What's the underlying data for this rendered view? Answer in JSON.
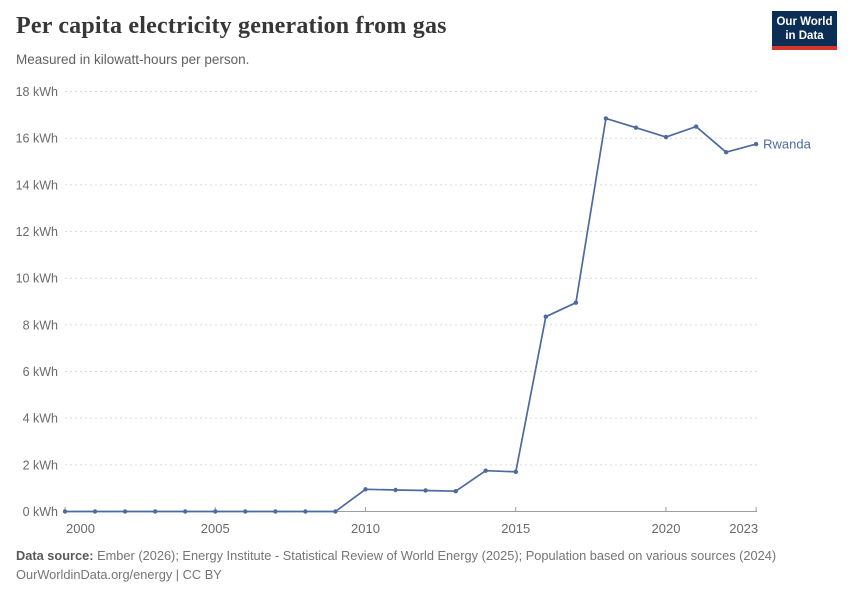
{
  "header": {
    "logo": {
      "line1": "Our World",
      "line2": "in Data"
    }
  },
  "chart_data": {
    "type": "line",
    "title": "Per capita electricity generation from gas",
    "subtitle": "Measured in kilowatt-hours per person.",
    "unit": "kWh",
    "x": [
      2000,
      2001,
      2002,
      2003,
      2004,
      2005,
      2006,
      2007,
      2008,
      2009,
      2010,
      2011,
      2012,
      2013,
      2014,
      2015,
      2016,
      2017,
      2018,
      2019,
      2020,
      2021,
      2022,
      2023
    ],
    "series": [
      {
        "name": "Rwanda",
        "color": "#4c6a9c",
        "values": [
          0,
          0,
          0,
          0,
          0,
          0,
          0,
          0,
          0,
          0,
          0.95,
          0.92,
          0.9,
          0.87,
          1.75,
          1.7,
          8.35,
          8.95,
          16.85,
          16.45,
          16.05,
          16.5,
          15.4,
          15.75
        ]
      }
    ],
    "xlabel": "",
    "ylabel": "",
    "ylim": [
      0,
      18
    ],
    "yticks": [
      0,
      2,
      4,
      6,
      8,
      10,
      12,
      14,
      16,
      18
    ],
    "ytick_labels": [
      "0 kWh",
      "2 kWh",
      "4 kWh",
      "6 kWh",
      "8 kWh",
      "10 kWh",
      "12 kWh",
      "14 kWh",
      "16 kWh",
      "18 kWh"
    ],
    "xticks": [
      2000,
      2005,
      2010,
      2015,
      2020,
      2023
    ],
    "xtick_labels": [
      "2000",
      "2005",
      "2010",
      "2015",
      "2020",
      "2023"
    ],
    "grid": "horizontal dashed",
    "legend": "label at end of line"
  },
  "footer": {
    "datasource_label": "Data source:",
    "datasource_text": " Ember (2026); Energy Institute - Statistical Review of World Energy (2025); Population based on various sources (2024)",
    "link_line": "OurWorldinData.org/energy | CC BY"
  },
  "colors": {
    "line": "#4c6a9c",
    "grid": "#dcdcdc",
    "axis": "#9e9e9e",
    "tick_text": "#6a6a6a",
    "title_text": "#373737",
    "logo_bg": "#0d2e54",
    "logo_bar": "#d6352b"
  }
}
